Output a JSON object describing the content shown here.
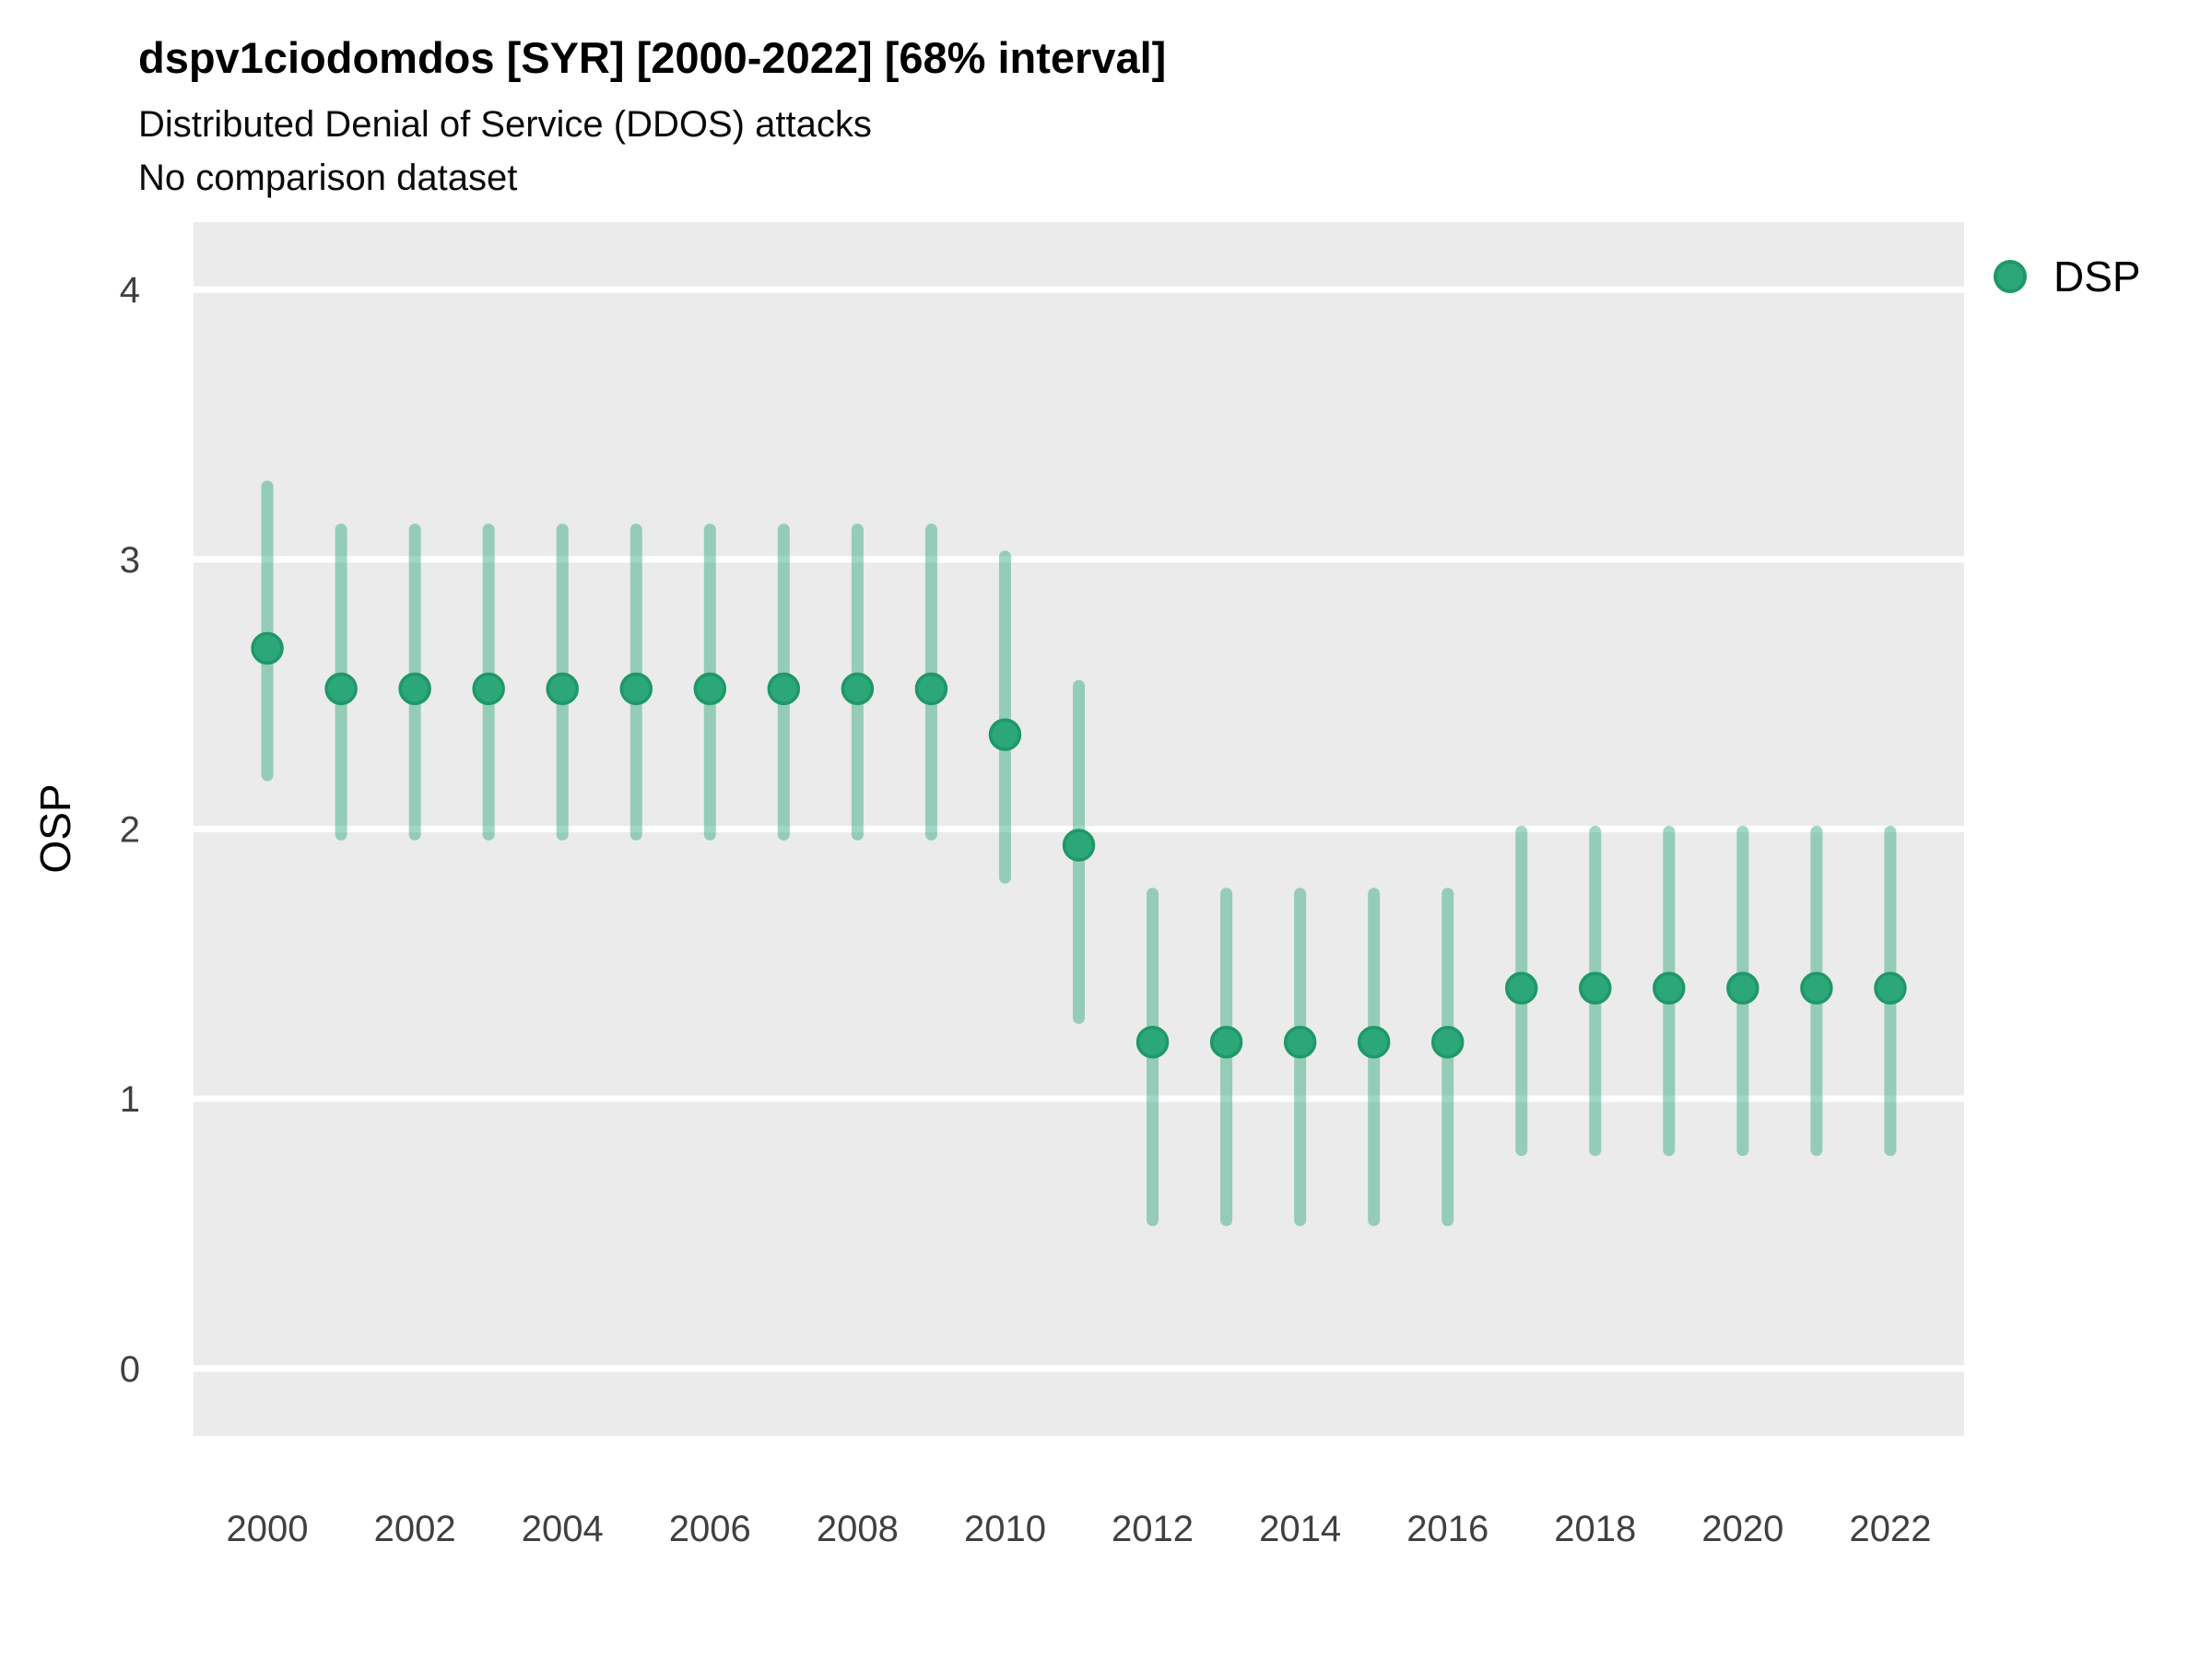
{
  "colors": {
    "panel_bg": "#EBEBEB",
    "gridline": "#FFFFFF",
    "point_fill": "#2CA77A",
    "point_stroke": "#1F9868",
    "interval_line": "rgba(44,167,122,0.45)",
    "tick_text": "#404040",
    "title_text": "#000000"
  },
  "chart_data": {
    "type": "pointrange",
    "title": "dspv1ciodomdos [SYR] [2000-2022] [68% interval]",
    "subtitle": "Distributed Denial of Service (DDOS) attacks",
    "subtitle2": "No comparison dataset",
    "xlabel": "",
    "ylabel": "OSP",
    "interval_level": "68%",
    "grid": "major-horizontal-only",
    "ylim": [
      -0.25,
      4.25
    ],
    "xlim": [
      1999,
      2023
    ],
    "yticks": [
      0,
      1,
      2,
      3,
      4
    ],
    "xticks": [
      2000,
      2002,
      2004,
      2006,
      2008,
      2010,
      2012,
      2014,
      2016,
      2018,
      2020,
      2022
    ],
    "legend": {
      "position": "right-top",
      "entries": [
        "DSP"
      ]
    },
    "series": [
      {
        "name": "DSP",
        "x": [
          2000,
          2001,
          2002,
          2003,
          2004,
          2005,
          2006,
          2007,
          2008,
          2009,
          2010,
          2011,
          2012,
          2013,
          2014,
          2015,
          2016,
          2017,
          2018,
          2019,
          2020,
          2021,
          2022
        ],
        "mid": [
          2.67,
          2.52,
          2.52,
          2.52,
          2.52,
          2.52,
          2.52,
          2.52,
          2.52,
          2.52,
          2.35,
          1.94,
          1.21,
          1.21,
          1.21,
          1.21,
          1.21,
          1.41,
          1.41,
          1.41,
          1.41,
          1.41,
          1.41
        ],
        "lo": [
          2.2,
          1.98,
          1.98,
          1.98,
          1.98,
          1.98,
          1.98,
          1.98,
          1.98,
          1.98,
          1.82,
          1.3,
          0.55,
          0.55,
          0.55,
          0.55,
          0.55,
          0.81,
          0.81,
          0.81,
          0.81,
          0.81,
          0.81
        ],
        "hi": [
          3.27,
          3.11,
          3.11,
          3.11,
          3.11,
          3.11,
          3.11,
          3.11,
          3.11,
          3.11,
          3.01,
          2.53,
          1.76,
          1.76,
          1.76,
          1.76,
          1.76,
          1.99,
          1.99,
          1.99,
          1.99,
          1.99,
          1.99
        ]
      }
    ]
  }
}
